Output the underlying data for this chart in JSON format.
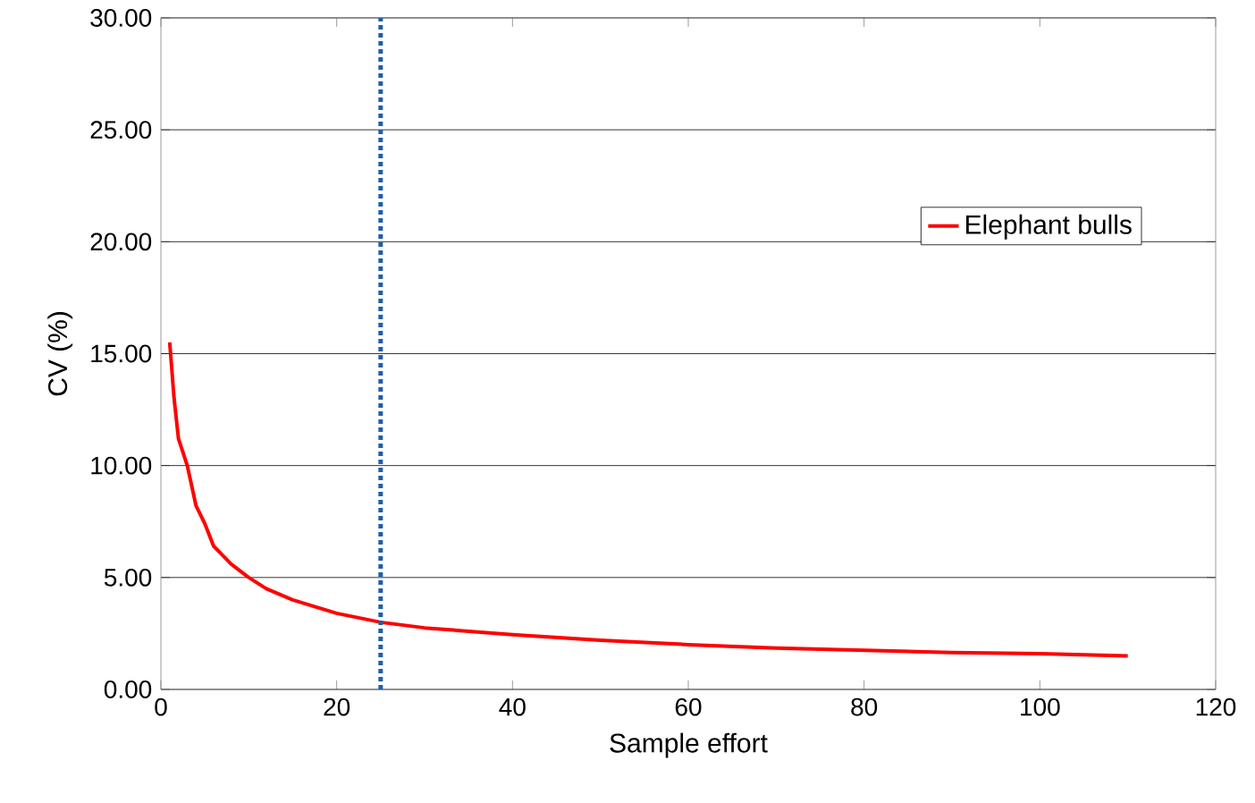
{
  "chart_data": {
    "type": "line",
    "xlabel": "Sample effort",
    "ylabel": "CV (%)",
    "x": [
      1,
      1.5,
      2,
      3,
      4,
      5,
      6,
      8,
      10,
      12,
      15,
      20,
      25,
      30,
      40,
      50,
      60,
      70,
      80,
      90,
      100,
      110
    ],
    "series": [
      {
        "name": "Elephant bulls",
        "color": "#ff0000",
        "values": [
          15.5,
          13.0,
          11.2,
          10.0,
          8.2,
          7.4,
          6.4,
          5.6,
          5.0,
          4.5,
          4.0,
          3.4,
          3.0,
          2.75,
          2.45,
          2.2,
          2.0,
          1.85,
          1.75,
          1.65,
          1.6,
          1.5
        ]
      }
    ],
    "xlim": [
      0,
      120
    ],
    "xticks": [
      0,
      20,
      40,
      60,
      80,
      100,
      120
    ],
    "ylim": [
      0,
      30
    ],
    "yticks": [
      {
        "value": 0,
        "label": "0.00"
      },
      {
        "value": 5,
        "label": "5.00"
      },
      {
        "value": 10,
        "label": "10.00"
      },
      {
        "value": 15,
        "label": "15.00"
      },
      {
        "value": 20,
        "label": "20.00"
      },
      {
        "value": 25,
        "label": "25.00"
      },
      {
        "value": 30,
        "label": "30.00"
      }
    ],
    "ref_lines": [
      {
        "axis": "x",
        "value": 25,
        "color": "#1f5fa8",
        "line_style": "dotted"
      }
    ],
    "grid": "y",
    "legend": "right",
    "marker": "none",
    "line_style": "solid"
  }
}
